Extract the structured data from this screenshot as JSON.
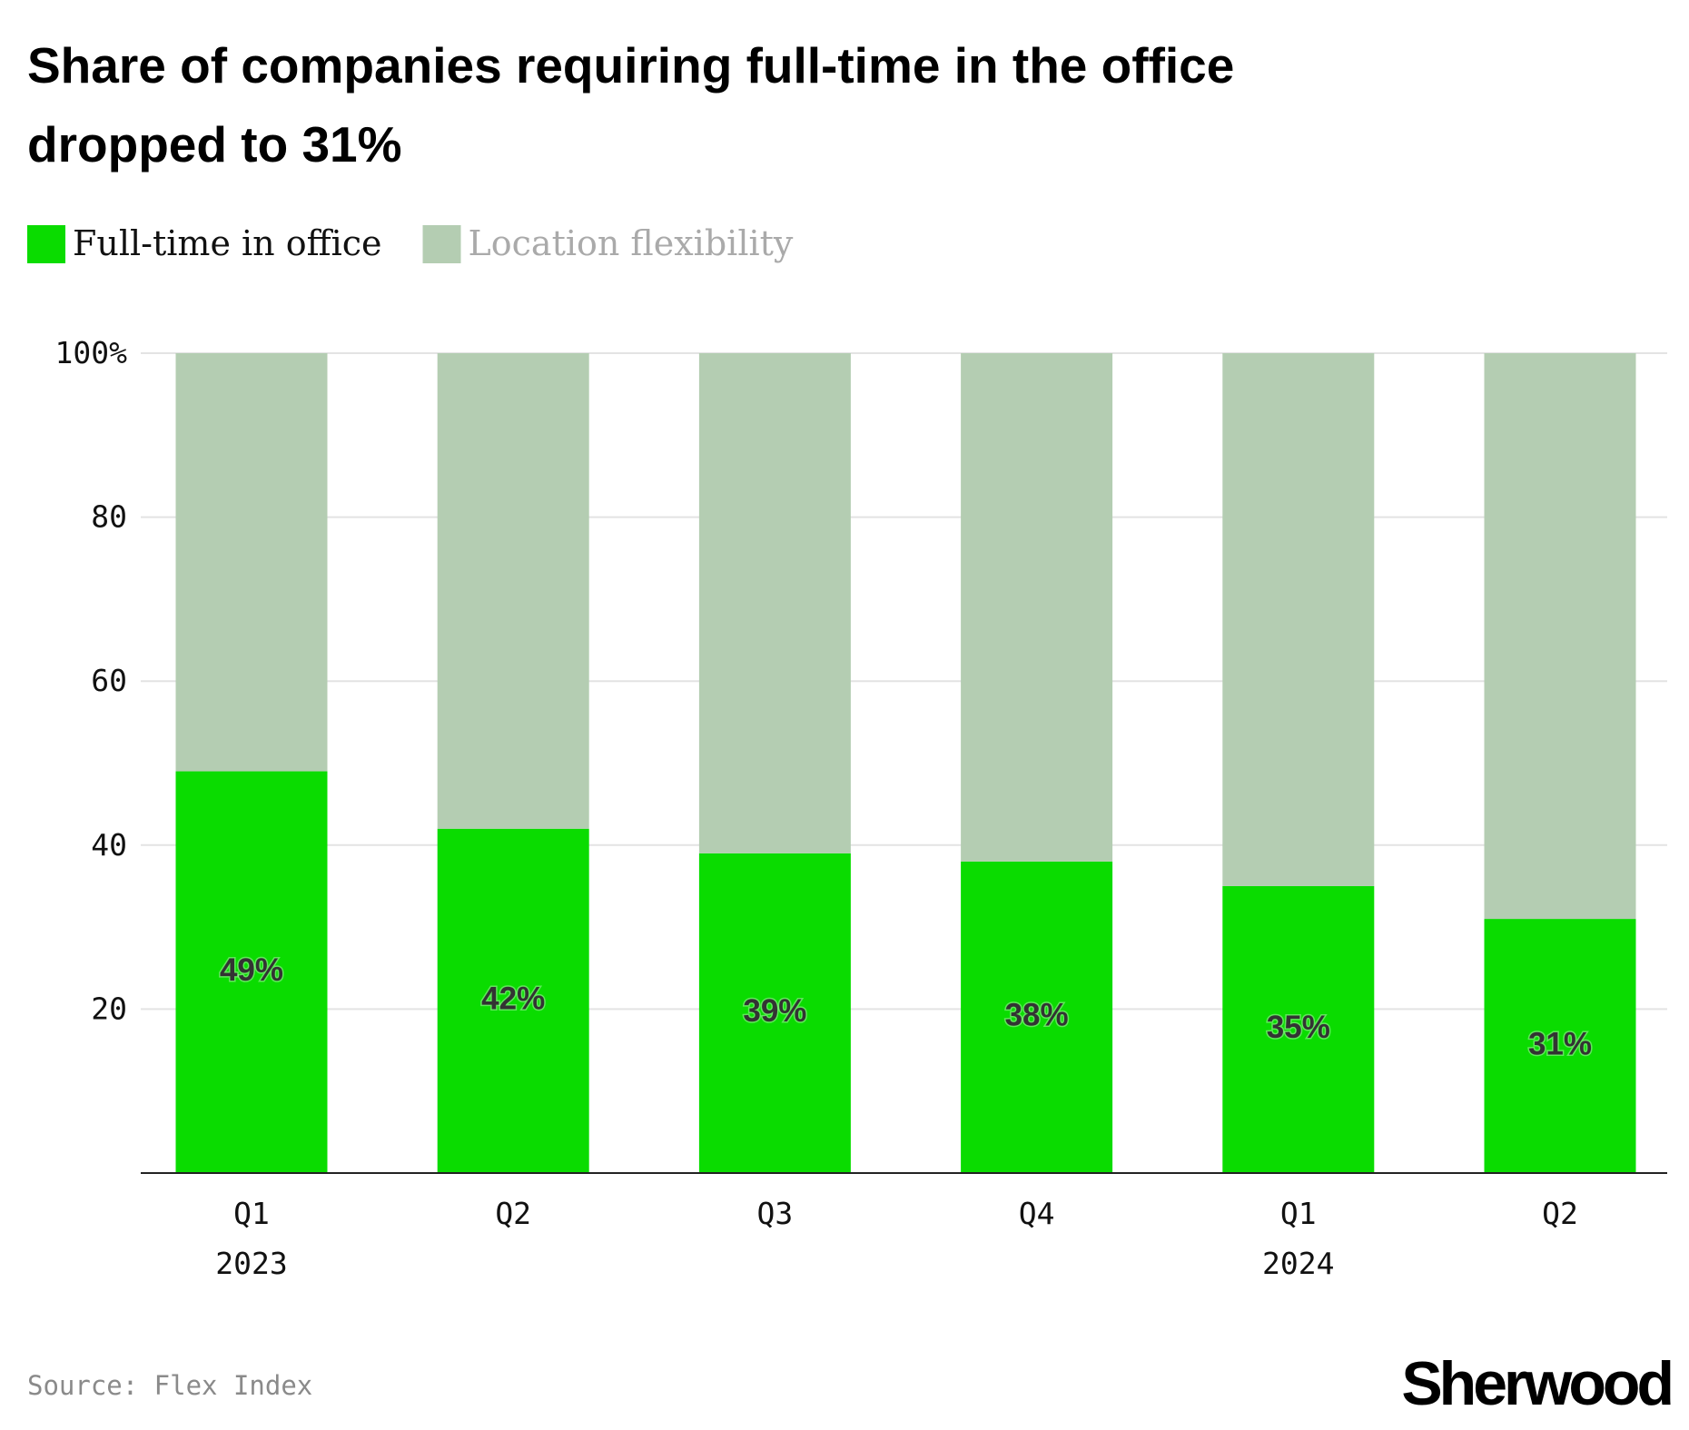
{
  "chart_data": {
    "type": "stacked_bar",
    "title": [
      "Share of companies requiring full-time in the office",
      "dropped to 31%"
    ],
    "categories": [
      [
        "Q1",
        "2023"
      ],
      [
        "Q2"
      ],
      [
        "Q3"
      ],
      [
        "Q4"
      ],
      [
        "Q1",
        "2024"
      ],
      [
        "Q2"
      ]
    ],
    "series": [
      {
        "name": "Full-time in office",
        "color": "#0adc00",
        "values": [
          49,
          42,
          39,
          38,
          35,
          31
        ],
        "value_labels": [
          "49%",
          "42%",
          "39%",
          "38%",
          "35%",
          "31%"
        ]
      },
      {
        "name": "Location flexibility",
        "color": "#b4cdb2",
        "values": [
          51,
          58,
          61,
          62,
          65,
          69
        ]
      }
    ],
    "ylim": [
      0,
      100
    ],
    "yticks": [
      20,
      40,
      60,
      80,
      {
        "value": 100,
        "label": "100%"
      }
    ],
    "grid": true,
    "source": "Source: Flex Index",
    "logo": "Sherwood"
  }
}
